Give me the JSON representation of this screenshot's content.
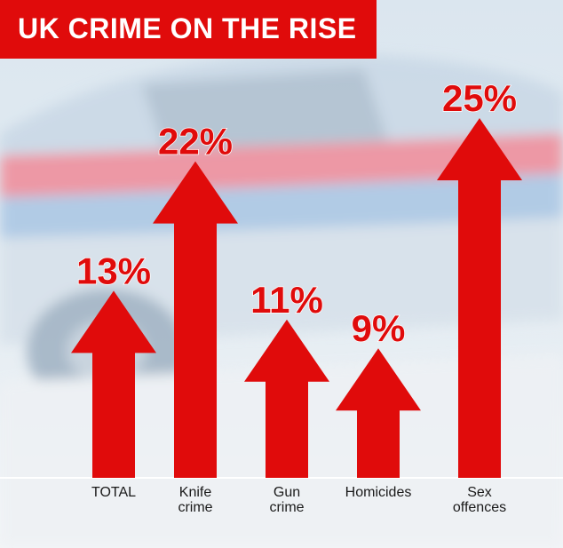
{
  "title": "UK CRIME ON THE RISE",
  "colors": {
    "accent": "#e00b0b",
    "header_text": "#ffffff"
  },
  "chart_data": {
    "type": "bar",
    "title": "UK CRIME ON THE RISE",
    "categories": [
      "TOTAL",
      "Knife crime",
      "Gun crime",
      "Homicides",
      "Sex offences"
    ],
    "category_lines": [
      [
        "TOTAL"
      ],
      [
        "Knife",
        "crime"
      ],
      [
        "Gun",
        "crime"
      ],
      [
        "Homicides"
      ],
      [
        "Sex",
        "offences"
      ]
    ],
    "values": [
      13,
      22,
      11,
      9,
      25
    ],
    "data_labels": [
      "13%",
      "22%",
      "11%",
      "9%",
      "25%"
    ],
    "unit": "%",
    "ylim": [
      0,
      25
    ],
    "grid": false,
    "xlabel": "",
    "ylabel": ""
  }
}
